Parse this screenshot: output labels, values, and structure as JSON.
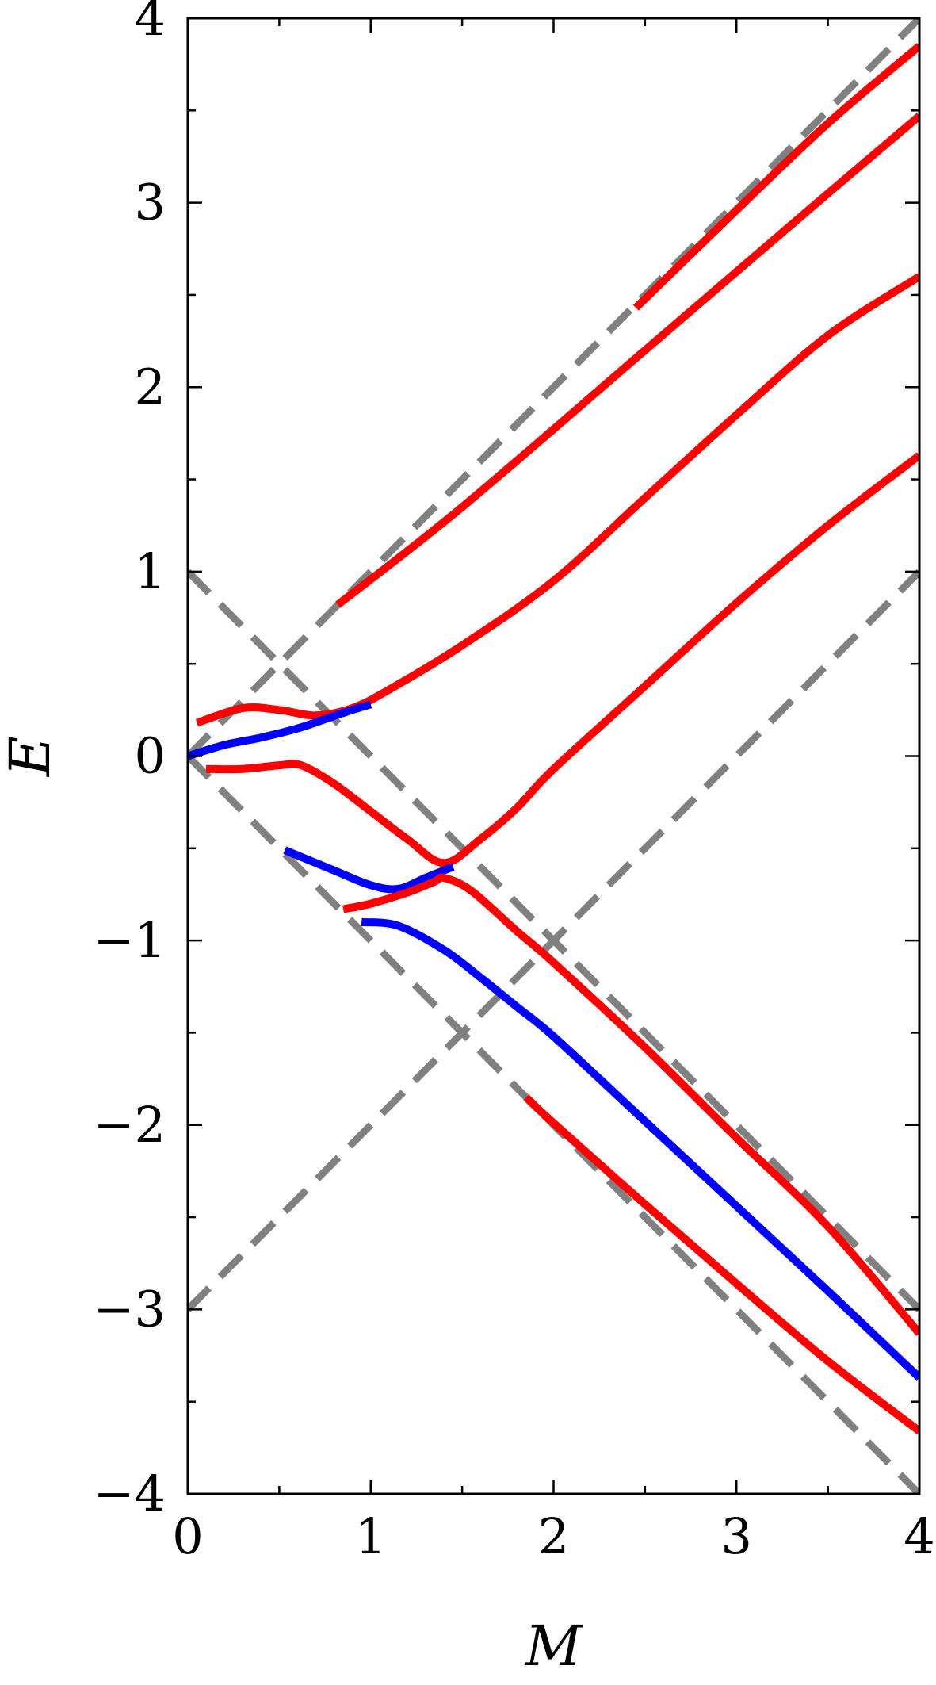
{
  "chart_data": {
    "type": "line",
    "xlabel": "M",
    "ylabel": "E",
    "xlim": [
      0,
      4
    ],
    "ylim": [
      -4,
      4
    ],
    "x_ticks": [
      0,
      1,
      2,
      3,
      4
    ],
    "x_tick_labels": [
      "0",
      "1",
      "2",
      "3",
      "4"
    ],
    "x_minor_step": 0.5,
    "y_ticks": [
      4,
      3,
      2,
      1,
      0,
      -1,
      -2,
      -3,
      -4
    ],
    "y_tick_labels": [
      "4",
      "3",
      "2",
      "1",
      "0",
      "−1",
      "−2",
      "−3",
      "−4"
    ],
    "y_minor_step": 0.5,
    "grid": false,
    "legend": "none",
    "colors": {
      "red": "#ff0000",
      "blue": "#0000ff",
      "guide": "#808080"
    },
    "guide_lines": [
      {
        "points": [
          [
            0,
            0
          ],
          [
            4,
            4
          ]
        ]
      },
      {
        "points": [
          [
            0,
            0
          ],
          [
            4,
            -4
          ]
        ]
      },
      {
        "points": [
          [
            0,
            1
          ],
          [
            4,
            -3
          ]
        ]
      },
      {
        "points": [
          [
            0,
            -3
          ],
          [
            4,
            1
          ]
        ]
      }
    ],
    "series": [
      {
        "color": "red",
        "points": [
          [
            0.82,
            0.82
          ],
          [
            1.5,
            1.35
          ],
          [
            2.5,
            2.2
          ],
          [
            3.5,
            3.05
          ],
          [
            4.0,
            3.47
          ]
        ]
      },
      {
        "color": "red",
        "points": [
          [
            2.45,
            2.43
          ],
          [
            3.0,
            2.96
          ],
          [
            3.5,
            3.43
          ],
          [
            4.0,
            3.85
          ]
        ]
      },
      {
        "color": "red",
        "points": [
          [
            0.05,
            0.18
          ],
          [
            0.3,
            0.26
          ],
          [
            0.5,
            0.25
          ],
          [
            0.7,
            0.22
          ],
          [
            0.9,
            0.26
          ],
          [
            1.1,
            0.36
          ],
          [
            1.5,
            0.6
          ],
          [
            2.0,
            0.95
          ],
          [
            2.5,
            1.4
          ],
          [
            3.0,
            1.85
          ],
          [
            3.5,
            2.28
          ],
          [
            4.0,
            2.6
          ]
        ]
      },
      {
        "color": "blue",
        "points": [
          [
            0.0,
            0.0
          ],
          [
            0.2,
            0.06
          ],
          [
            0.4,
            0.1
          ],
          [
            0.6,
            0.15
          ],
          [
            0.75,
            0.2
          ],
          [
            0.9,
            0.25
          ],
          [
            1.0,
            0.28
          ]
        ]
      },
      {
        "color": "red",
        "points": [
          [
            0.1,
            -0.07
          ],
          [
            0.3,
            -0.07
          ],
          [
            0.5,
            -0.05
          ],
          [
            0.62,
            -0.05
          ],
          [
            0.8,
            -0.15
          ],
          [
            1.0,
            -0.3
          ],
          [
            1.2,
            -0.45
          ],
          [
            1.4,
            -0.58
          ],
          [
            1.6,
            -0.45
          ],
          [
            1.8,
            -0.28
          ],
          [
            2.0,
            -0.07
          ],
          [
            2.5,
            0.38
          ],
          [
            3.0,
            0.83
          ],
          [
            3.5,
            1.25
          ],
          [
            4.0,
            1.63
          ]
        ]
      },
      {
        "color": "blue",
        "points": [
          [
            0.53,
            -0.51
          ],
          [
            0.8,
            -0.62
          ],
          [
            1.0,
            -0.7
          ],
          [
            1.15,
            -0.72
          ],
          [
            1.3,
            -0.66
          ],
          [
            1.45,
            -0.6
          ]
        ]
      },
      {
        "color": "red",
        "points": [
          [
            0.85,
            -0.83
          ],
          [
            1.0,
            -0.8
          ],
          [
            1.2,
            -0.74
          ],
          [
            1.35,
            -0.68
          ],
          [
            1.4,
            -0.66
          ],
          [
            1.55,
            -0.73
          ],
          [
            1.8,
            -0.95
          ],
          [
            2.0,
            -1.12
          ],
          [
            2.5,
            -1.58
          ],
          [
            3.0,
            -2.07
          ],
          [
            3.5,
            -2.55
          ],
          [
            4.0,
            -3.13
          ]
        ]
      },
      {
        "color": "blue",
        "points": [
          [
            0.95,
            -0.9
          ],
          [
            1.15,
            -0.92
          ],
          [
            1.4,
            -1.05
          ],
          [
            1.6,
            -1.2
          ],
          [
            1.8,
            -1.36
          ],
          [
            2.0,
            -1.52
          ],
          [
            2.5,
            -1.98
          ],
          [
            3.0,
            -2.44
          ],
          [
            3.5,
            -2.9
          ],
          [
            4.0,
            -3.37
          ]
        ]
      },
      {
        "color": "red",
        "points": [
          [
            1.85,
            -1.85
          ],
          [
            2.0,
            -1.99
          ],
          [
            2.5,
            -2.43
          ],
          [
            3.0,
            -2.86
          ],
          [
            3.5,
            -3.28
          ],
          [
            4.0,
            -3.66
          ]
        ]
      }
    ]
  }
}
